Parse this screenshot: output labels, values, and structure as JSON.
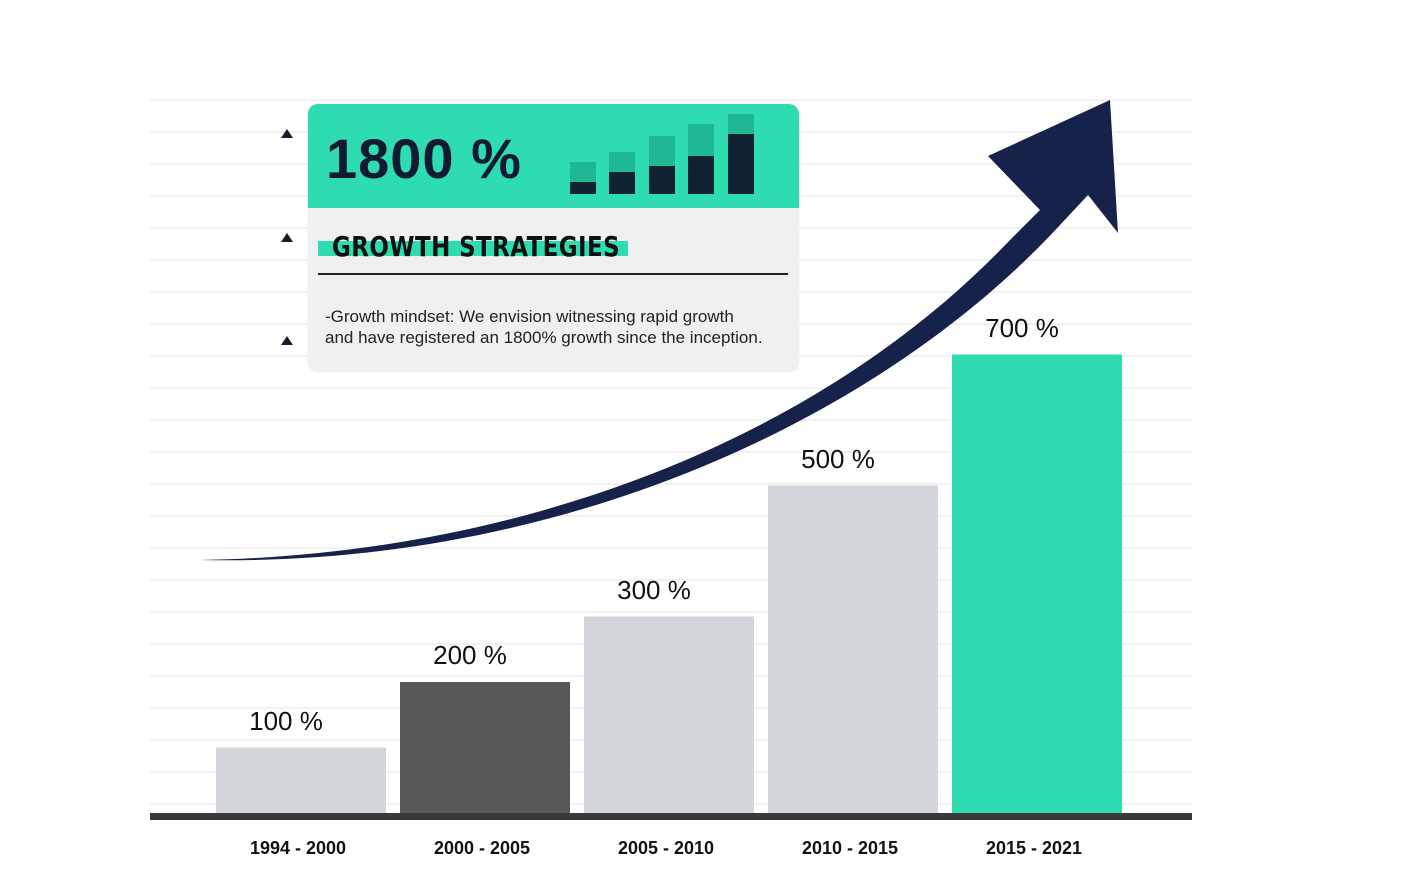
{
  "chart_data": {
    "type": "bar",
    "categories": [
      "1994 - 2000",
      "2000 - 2005",
      "2005 - 2010",
      "2010 - 2015",
      "2015 - 2021"
    ],
    "values": [
      100,
      200,
      300,
      500,
      700
    ],
    "value_labels": [
      "100 %",
      "200 %",
      "300 %",
      "500 %",
      "700 %"
    ],
    "ylim": [
      0,
      1000
    ],
    "grid": true,
    "title": "",
    "xlabel": "",
    "ylabel": ""
  },
  "colors": {
    "bar_light": "#d2d5d9",
    "bar_dark": "#575859",
    "bar_accent": "#2fdcb1",
    "arrow": "#16224a",
    "baseline": "#3a3a3a",
    "gridline": "#e3e3e3"
  },
  "card": {
    "headline_value": "1800 %",
    "heading": "GROWTH STRATEGIES",
    "description_line1": "-Growth mindset: We envision witnessing rapid growth",
    "description_line2": "and have registered an 1800% growth since the inception.",
    "mini_bars_icon": "bar-chart-icon"
  },
  "arrow_icon": "trend-arrow-icon",
  "bullet_icon": "triangle-bullet-icon"
}
